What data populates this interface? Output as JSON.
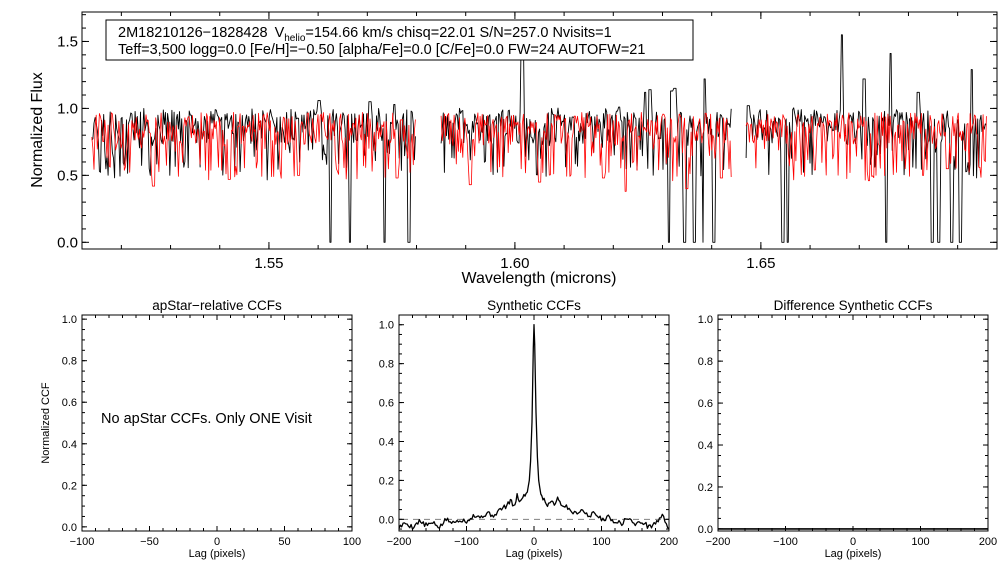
{
  "colors": {
    "observed": "#000000",
    "model": "#ff0000",
    "axis": "#000000",
    "baseline": "#808080"
  },
  "spectrum_panel": {
    "info_line1": {
      "star": "2M18210126−1828428",
      "v_pre": "V",
      "v_sub": "helio",
      "v_post": "=154.66 km/s  chisq=22.01  S/N=257.0  Nvisits=1"
    },
    "info_line2": "Teff=3,500 logg=0.0 [Fe/H]=−0.50 [alpha/Fe]=0.0 [C/Fe]=0.0 FW=24 AUTOFW=21"
  },
  "ccf_panels": {
    "apstar_note": "No apStar CCFs.  Only ONE Visit"
  },
  "chart_data": [
    {
      "id": "spectrum",
      "type": "line",
      "title": "",
      "xlabel": "Wavelength (microns)",
      "ylabel": "Normalized Flux",
      "xlim": [
        1.512,
        1.698
      ],
      "ylim": [
        -0.05,
        1.72
      ],
      "xticks": [
        1.55,
        1.6,
        1.65
      ],
      "xtick_labels": [
        "1.55",
        "1.60",
        "1.65"
      ],
      "yticks": [
        0.0,
        0.5,
        1.0,
        1.5
      ],
      "ytick_labels": [
        "0.0",
        "0.5",
        "1.0",
        "1.5"
      ],
      "chip_ranges": [
        [
          1.514,
          1.58
        ],
        [
          1.585,
          1.644
        ],
        [
          1.647,
          1.696
        ]
      ],
      "series": [
        {
          "name": "observed spectrum",
          "color": "#000000",
          "continuum": 0.88,
          "absorption": [
            [
              1.5625,
              0.0
            ],
            [
              1.5665,
              0.0
            ],
            [
              1.5735,
              0.0
            ],
            [
              1.5785,
              0.0
            ],
            [
              1.6315,
              0.0
            ],
            [
              1.6345,
              0.0
            ],
            [
              1.6365,
              0.0
            ],
            [
              1.6385,
              0.0
            ],
            [
              1.6405,
              0.0
            ],
            [
              1.6545,
              0.0
            ],
            [
              1.6555,
              0.0
            ],
            [
              1.6755,
              0.0
            ],
            [
              1.6848,
              0.0
            ],
            [
              1.6862,
              0.0
            ],
            [
              1.6888,
              0.0
            ],
            [
              1.6905,
              0.0
            ]
          ],
          "emission": [
            [
              1.5602,
              1.06
            ],
            [
              1.5706,
              1.05
            ],
            [
              1.5755,
              1.03
            ],
            [
              1.6015,
              1.54
            ],
            [
              1.6212,
              1.01
            ],
            [
              1.6265,
              1.12
            ],
            [
              1.6275,
              1.14
            ],
            [
              1.6318,
              1.13
            ],
            [
              1.6325,
              1.15
            ],
            [
              1.6386,
              1.22
            ],
            [
              1.6475,
              1.02
            ],
            [
              1.6665,
              1.55
            ],
            [
              1.671,
              1.22
            ],
            [
              1.6764,
              1.41
            ],
            [
              1.682,
              1.12
            ],
            [
              1.6929,
              1.29
            ]
          ]
        },
        {
          "name": "model spectrum",
          "color": "#ff0000",
          "continuum": 0.86,
          "absorption": [
            [
              1.5265,
              0.42
            ],
            [
              1.542,
              0.47
            ],
            [
              1.556,
              0.5
            ],
            [
              1.576,
              0.48
            ],
            [
              1.591,
              0.43
            ],
            [
              1.605,
              0.45
            ],
            [
              1.618,
              0.48
            ],
            [
              1.6225,
              0.38
            ],
            [
              1.635,
              0.4
            ],
            [
              1.642,
              0.48
            ],
            [
              1.661,
              0.54
            ],
            [
              1.672,
              0.46
            ],
            [
              1.683,
              0.5
            ],
            [
              1.688,
              0.55
            ],
            [
              1.6945,
              0.56
            ]
          ]
        }
      ]
    },
    {
      "id": "apstar_ccf",
      "type": "line",
      "title": "apStar−relative CCFs",
      "xlabel": "Lag (pixels)",
      "ylabel": "Normalized CCF",
      "xlim": [
        -100,
        100
      ],
      "ylim": [
        -0.02,
        1.02
      ],
      "xticks": [
        -100,
        -50,
        0,
        50,
        100
      ],
      "xtick_labels": [
        "−100",
        "−50",
        "0",
        "50",
        "100"
      ],
      "yticks": [
        0.0,
        0.2,
        0.4,
        0.6,
        0.8,
        1.0
      ],
      "ytick_labels": [
        "0.0",
        "0.2",
        "0.4",
        "0.6",
        "0.8",
        "1.0"
      ],
      "series": []
    },
    {
      "id": "synthetic_ccf",
      "type": "line",
      "title": "Synthetic CCFs",
      "xlabel": "Lag (pixels)",
      "ylabel": "",
      "xlim": [
        -200,
        200
      ],
      "ylim": [
        -0.06,
        1.05
      ],
      "xticks": [
        -200,
        -100,
        0,
        100,
        200
      ],
      "xtick_labels": [
        "−200",
        "−100",
        "0",
        "100",
        "200"
      ],
      "yticks": [
        0.0,
        0.2,
        0.4,
        0.6,
        0.8,
        1.0
      ],
      "ytick_labels": [
        "0.0",
        "0.2",
        "0.4",
        "0.6",
        "0.8",
        "1.0"
      ],
      "baseline_y": 0.0,
      "series": [
        {
          "name": "CCF",
          "color": "#000000",
          "x": [
            -200,
            -190,
            -180,
            -170,
            -160,
            -150,
            -140,
            -130,
            -120,
            -110,
            -100,
            -90,
            -80,
            -70,
            -60,
            -50,
            -40,
            -35,
            -30,
            -25,
            -20,
            -15,
            -10,
            -7,
            -5,
            -3,
            -1,
            0,
            1,
            3,
            5,
            7,
            10,
            15,
            20,
            25,
            30,
            35,
            40,
            50,
            60,
            70,
            80,
            90,
            100,
            110,
            120,
            130,
            140,
            150,
            160,
            170,
            180,
            190,
            200
          ],
          "y": [
            -0.04,
            -0.02,
            -0.04,
            -0.01,
            -0.03,
            -0.02,
            -0.04,
            0.0,
            -0.02,
            0.0,
            -0.01,
            0.02,
            0.01,
            0.03,
            0.02,
            0.05,
            0.07,
            0.1,
            0.06,
            0.12,
            0.09,
            0.12,
            0.14,
            0.2,
            0.3,
            0.5,
            0.88,
            1.0,
            0.9,
            0.55,
            0.32,
            0.2,
            0.13,
            0.1,
            0.07,
            0.1,
            0.08,
            0.11,
            0.08,
            0.06,
            0.03,
            0.05,
            0.02,
            0.03,
            0.0,
            0.01,
            -0.01,
            -0.02,
            0.01,
            -0.03,
            -0.01,
            -0.04,
            -0.02,
            0.02,
            -0.05
          ]
        }
      ]
    },
    {
      "id": "difference_ccf",
      "type": "line",
      "title": "Difference Synthetic CCFs",
      "xlabel": "Lag (pixels)",
      "ylabel": "",
      "xlim": [
        -200,
        200
      ],
      "ylim": [
        -0.01,
        1.02
      ],
      "xticks": [
        -200,
        -100,
        0,
        100,
        200
      ],
      "xtick_labels": [
        "−200",
        "−100",
        "0",
        "100",
        "200"
      ],
      "yticks": [
        0.0,
        0.2,
        0.4,
        0.6,
        0.8,
        1.0
      ],
      "ytick_labels": [
        "0.0",
        "0.2",
        "0.4",
        "0.6",
        "0.8",
        "1.0"
      ],
      "series": [
        {
          "name": "difference CCF",
          "color": "#000000",
          "x": [
            -200,
            200
          ],
          "y": [
            0.0,
            0.0
          ]
        }
      ]
    }
  ]
}
